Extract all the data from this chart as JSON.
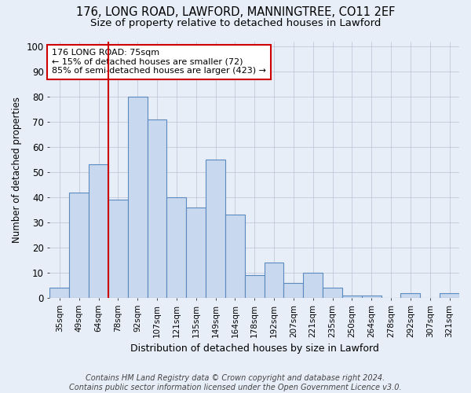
{
  "title1": "176, LONG ROAD, LAWFORD, MANNINGTREE, CO11 2EF",
  "title2": "Size of property relative to detached houses in Lawford",
  "xlabel": "Distribution of detached houses by size in Lawford",
  "ylabel": "Number of detached properties",
  "bins": [
    "35sqm",
    "49sqm",
    "64sqm",
    "78sqm",
    "92sqm",
    "107sqm",
    "121sqm",
    "135sqm",
    "149sqm",
    "164sqm",
    "178sqm",
    "192sqm",
    "207sqm",
    "221sqm",
    "235sqm",
    "250sqm",
    "264sqm",
    "278sqm",
    "292sqm",
    "307sqm",
    "321sqm"
  ],
  "values": [
    4,
    42,
    53,
    39,
    80,
    71,
    40,
    36,
    55,
    33,
    9,
    14,
    6,
    10,
    4,
    1,
    1,
    0,
    2,
    0,
    2
  ],
  "bar_color": "#c8d8ee",
  "bar_edge_color": "#5a8ac0",
  "vline_x_index": 3,
  "vline_color": "#cc0000",
  "annotation_text": "176 LONG ROAD: 75sqm\n← 15% of detached houses are smaller (72)\n85% of semi-detached houses are larger (423) →",
  "annotation_box_color": "#ffffff",
  "annotation_box_edge_color": "#cc0000",
  "ylim": [
    0,
    102
  ],
  "background_color": "#e8eef8",
  "footer": "Contains HM Land Registry data © Crown copyright and database right 2024.\nContains public sector information licensed under the Open Government Licence v3.0."
}
